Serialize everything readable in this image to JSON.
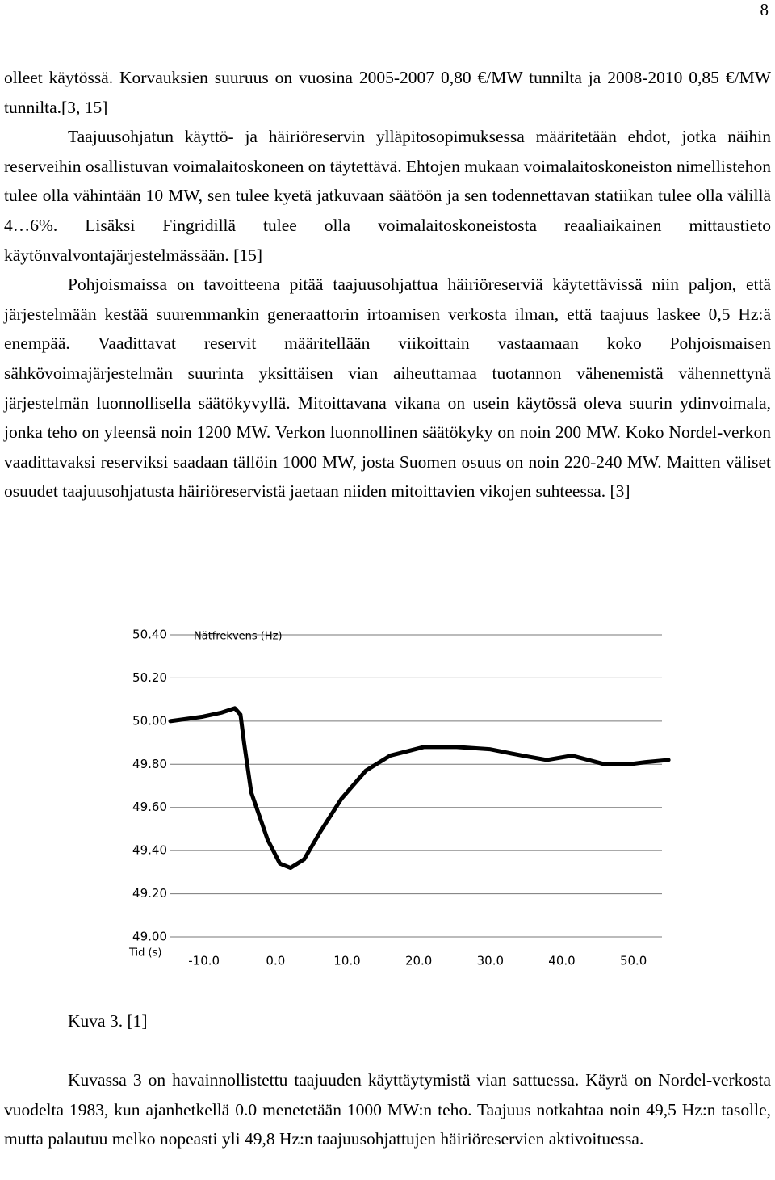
{
  "page_number": "8",
  "paragraphs": [
    "olleet käytössä. Korvauksien suuruus on vuosina 2005-2007 0,80 €/MW tunnilta ja 2008-2010 0,85 €/MW tunnilta.[3, 15]",
    "Taajuusohjatun käyttö- ja häiriöreservin ylläpitosopimuksessa määritetään ehdot, jotka näihin reserveihin osallistuvan voimalaitoskoneen on täytettävä. Ehtojen mukaan voimalaitoskoneiston nimellistehon tulee olla vähintään 10 MW, sen tulee kyetä jatkuvaan säätöön ja sen todennettavan statiikan tulee olla välillä 4…6%. Lisäksi Fingridillä tulee olla voimalaitoskoneistosta reaaliaikainen mittaustieto käytönvalvontajärjestelmässään. [15]",
    "Pohjoismaissa on tavoitteena pitää taajuusohjattua häiriöreserviä käytettävissä niin paljon, että järjestelmään kestää suuremmankin generaattorin irtoamisen verkosta ilman, että taajuus laskee 0,5 Hz:ä enempää. Vaadittavat reservit määritellään viikoittain vastaamaan koko Pohjoismaisen sähkövoimajärjestelmän suurinta yksittäisen vian aiheuttamaa tuotannon vähenemistä vähennettynä järjestelmän luonnollisella säätökyvyllä. Mitoittavana vikana on usein käytössä oleva suurin ydinvoimala, jonka teho on yleensä noin 1200 MW. Verkon luonnollinen säätökyky on noin 200 MW. Koko Nordel-verkon vaadittavaksi reserviksi saadaan tällöin 1000 MW, josta Suomen osuus on noin 220-240 MW. Maitten väliset osuudet taajuusohjatusta häiriöreservistä jaetaan niiden mitoittavien vikojen suhteessa. [3]"
  ],
  "chart_data": {
    "type": "line",
    "xlabel": "Tid (s)",
    "x": [
      -14.7,
      -10.3,
      -7.5,
      -5.7,
      -4.9,
      -4.4,
      -3.4,
      -1.1,
      0.6,
      2.1,
      4.0,
      6.3,
      9.2,
      12.6,
      16.0,
      20.7,
      25.3,
      29.9,
      34.5,
      37.9,
      41.4,
      46.0,
      49.4,
      51.7,
      54.9
    ],
    "series": [
      {
        "name": "Nätfrekvens (Hz)",
        "color": "#000000",
        "values": [
          50.0,
          50.02,
          50.04,
          50.06,
          50.03,
          49.9,
          49.67,
          49.45,
          49.34,
          49.32,
          49.36,
          49.49,
          49.64,
          49.77,
          49.84,
          49.88,
          49.88,
          49.87,
          49.84,
          49.82,
          49.84,
          49.8,
          49.8,
          49.81,
          49.82
        ]
      }
    ],
    "xlim": [
      -14.7,
      55
    ],
    "xticks": [
      {
        "value": -10,
        "label": "-10.0"
      },
      {
        "value": 0,
        "label": "0.0"
      },
      {
        "value": 10,
        "label": "10.0"
      },
      {
        "value": 20,
        "label": "20.0"
      },
      {
        "value": 30,
        "label": "30.0"
      },
      {
        "value": 40,
        "label": "40.0"
      },
      {
        "value": 50,
        "label": "50.0"
      }
    ],
    "ylim": [
      49,
      50.4
    ],
    "yticks": [
      {
        "value": 50.4,
        "label": "50.40"
      },
      {
        "value": 50.2,
        "label": "50.20"
      },
      {
        "value": 50,
        "label": "50.00"
      },
      {
        "value": 49.8,
        "label": "49.80"
      },
      {
        "value": 49.6,
        "label": "49.60"
      },
      {
        "value": 49.4,
        "label": "49.40"
      },
      {
        "value": 49.2,
        "label": "49.20"
      },
      {
        "value": 49,
        "label": "49.00"
      }
    ],
    "grid": true
  },
  "caption": "Kuva 3. [1]",
  "paragraphs_after": [
    "Kuvassa 3 on havainnollistettu taajuuden käyttäytymistä vian sattuessa. Käyrä on Nordel-verkosta vuodelta 1983, kun ajanhetkellä 0.0 menetetään 1000 MW:n teho. Taajuus notkahtaa noin 49,5 Hz:n tasolle, mutta palautuu melko nopeasti yli 49,8 Hz:n taajuusohjattujen häiriöreservien aktivoituessa."
  ]
}
